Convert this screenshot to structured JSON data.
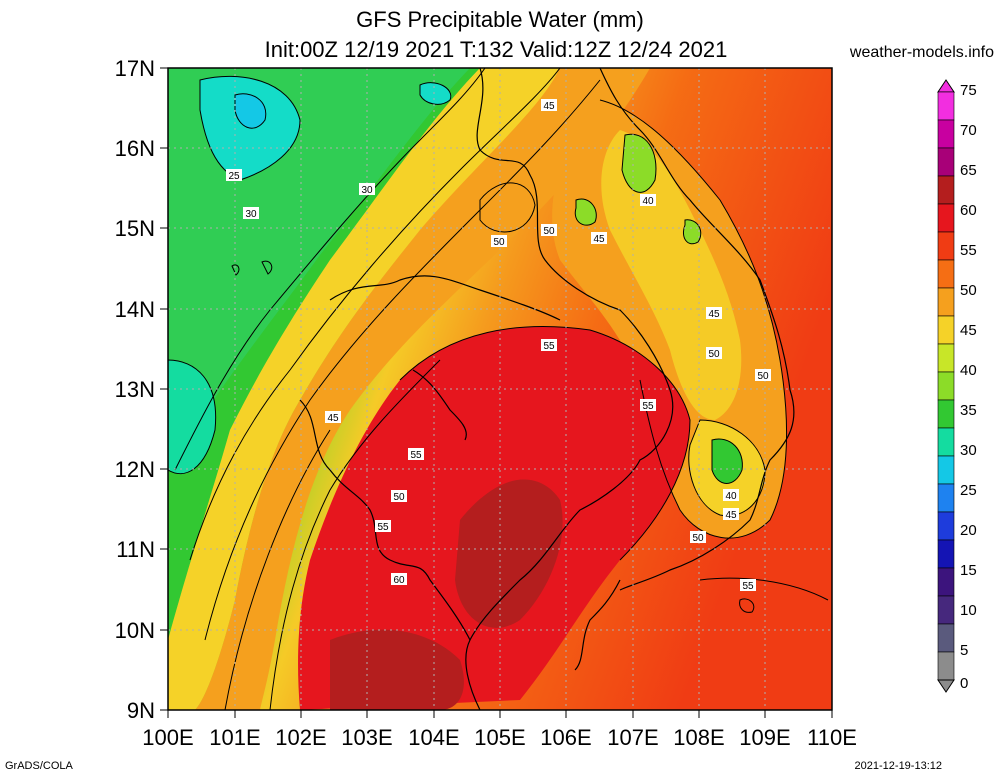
{
  "title_line1": "GFS Precipitable Water (mm)",
  "title_line2": "Init:00Z 12/19 2021 T:132 Valid:12Z 12/24 2021",
  "site": "weather-models.info",
  "credit": "GrADS/COLA",
  "timestamp": "2021-12-19-13:12",
  "lat_labels": [
    "17N",
    "16N",
    "15N",
    "14N",
    "13N",
    "12N",
    "11N",
    "10N",
    "9N"
  ],
  "lon_labels": [
    "100E",
    "101E",
    "102E",
    "103E",
    "104E",
    "105E",
    "106E",
    "107E",
    "108E",
    "109E",
    "110E"
  ],
  "colorbar": {
    "labels": [
      "75",
      "70",
      "65",
      "60",
      "55",
      "50",
      "45",
      "40",
      "35",
      "30",
      "25",
      "20",
      "15",
      "10",
      "5",
      "0"
    ],
    "colors": [
      "#f22ee0",
      "#c800a0",
      "#a80078",
      "#b41e1e",
      "#e6161e",
      "#f03c14",
      "#f56e14",
      "#f5a01e",
      "#f5d228",
      "#c8e628",
      "#8cdc28",
      "#32c832",
      "#14dca0",
      "#14c8e6",
      "#1e82f0",
      "#1e3cdc",
      "#1414b4",
      "#3c147d",
      "#46287d",
      "#5a5a7d",
      "#8c8c8c"
    ]
  },
  "contour_labels": [
    "25",
    "30",
    "30",
    "45",
    "40",
    "50",
    "50",
    "45",
    "45",
    "50",
    "55",
    "50",
    "55",
    "45",
    "55",
    "50",
    "55",
    "40",
    "45",
    "50",
    "60",
    "55"
  ]
}
